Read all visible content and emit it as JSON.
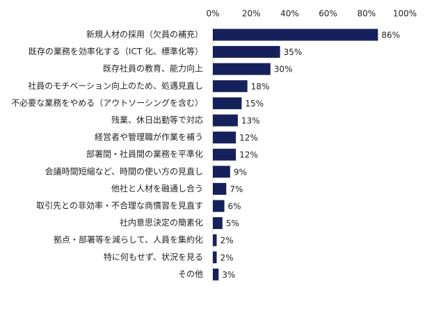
{
  "chart_data": {
    "type": "bar",
    "orientation": "horizontal",
    "categories": [
      "新規人材の採用（欠員の補充）",
      "既存の業務を効率化する（ICT 化、標準化等）",
      "既存社員の教育、能力向上",
      "社員のモチベーション向上のため、処遇見直し",
      "不必要な業務をやめる（アウトソーシングを含む）",
      "残業、休日出勤等で対応",
      "経営者や管理職が作業を補う",
      "部署間・社員間の業務を平準化",
      "会議時間短縮など、時間の使い方の見直し",
      "他社と人材を融通し合う",
      "取引先との非効率・不合理な商慣習を見直す",
      "社内意思決定の簡素化",
      "拠点・部署等を減らして、人員を集約化",
      "特に何もせず、状況を見る",
      "その他"
    ],
    "values": [
      86,
      35,
      30,
      18,
      15,
      13,
      12,
      12,
      9,
      7,
      6,
      5,
      2,
      2,
      3
    ],
    "value_labels": [
      "86%",
      "35%",
      "30%",
      "18%",
      "15%",
      "13%",
      "12%",
      "12%",
      "9%",
      "7%",
      "6%",
      "5%",
      "2%",
      "2%",
      "3%"
    ],
    "xlim": [
      0,
      100
    ],
    "xticks": [
      "0%",
      "20%",
      "40%",
      "60%",
      "80%",
      "100%"
    ],
    "xaxis_position": "top",
    "grid": false,
    "legend": false,
    "bar_color": "#16215c"
  }
}
